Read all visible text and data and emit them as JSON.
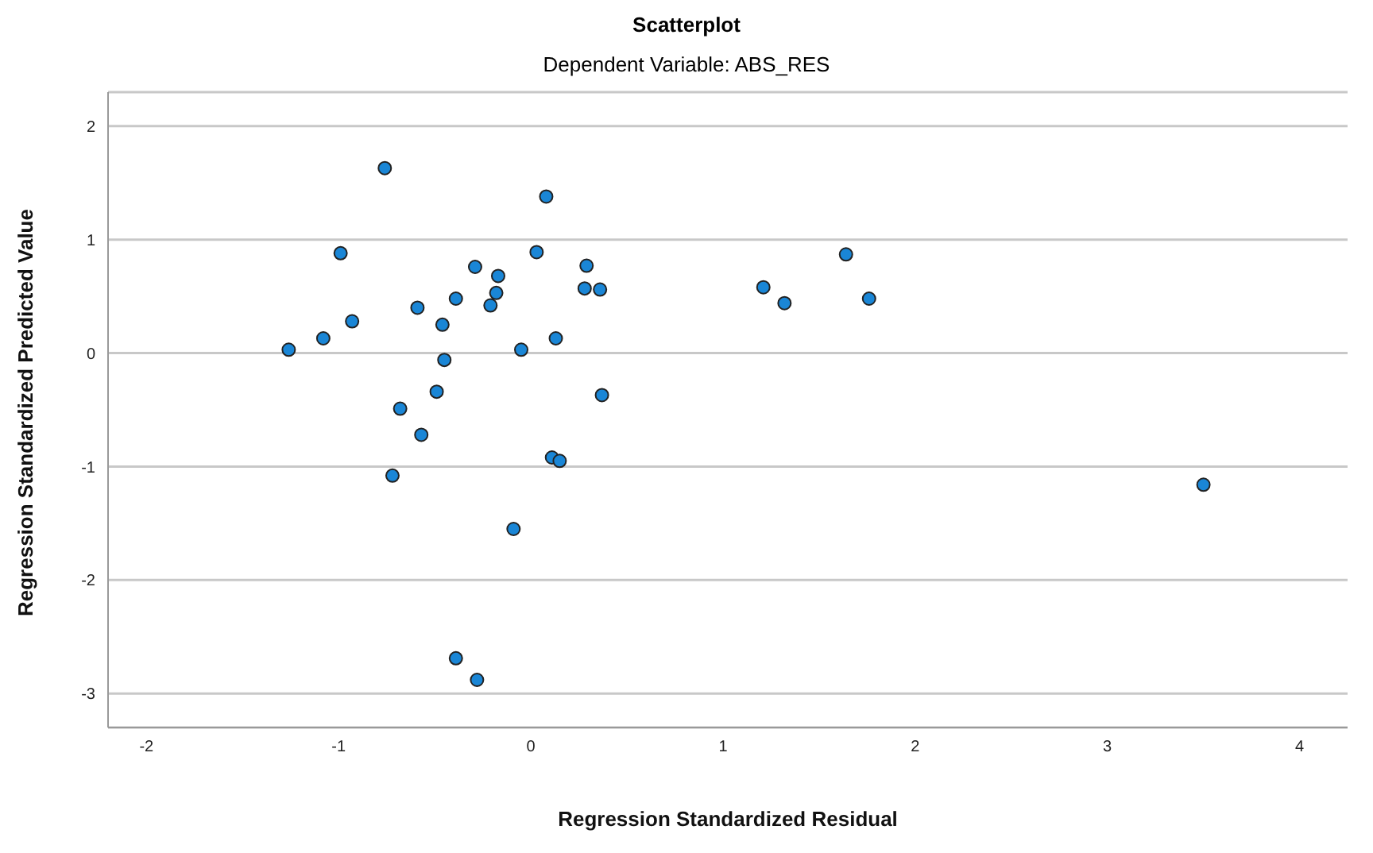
{
  "chart_data": {
    "type": "scatter",
    "title": "Scatterplot",
    "subtitle": "Dependent Variable: ABS_RES",
    "xlabel": "Regression Standardized Residual",
    "ylabel": "Regression Standardized Predicted Value",
    "x": [
      -0.76,
      0.08,
      -0.99,
      0.03,
      1.64,
      -0.29,
      0.29,
      -0.17,
      1.21,
      0.28,
      0.36,
      -0.18,
      -0.39,
      1.32,
      1.76,
      -0.21,
      -0.59,
      -0.46,
      -0.93,
      -1.08,
      0.13,
      -1.26,
      -0.05,
      -0.45,
      -0.49,
      -0.68,
      0.37,
      -0.57,
      0.11,
      0.15,
      -0.72,
      -0.09,
      -0.39,
      -0.28,
      3.5
    ],
    "values": [
      1.63,
      1.38,
      0.88,
      0.89,
      0.87,
      0.76,
      0.77,
      0.68,
      0.58,
      0.57,
      0.56,
      0.53,
      0.48,
      0.44,
      0.48,
      0.42,
      0.4,
      0.25,
      0.28,
      0.13,
      0.13,
      0.03,
      0.03,
      -0.06,
      -0.34,
      -0.49,
      -0.37,
      -0.72,
      -0.92,
      -0.95,
      -1.08,
      -1.55,
      -2.69,
      -2.88,
      -1.16
    ],
    "color": "#1a86d6",
    "marker": "circle",
    "grid": "y",
    "xlim": [
      -2.2,
      4.25
    ],
    "ylim": [
      -3.3,
      2.3
    ],
    "xticks": [
      -2,
      -1,
      0,
      1,
      2,
      3,
      4
    ],
    "yticks": [
      -3,
      -2,
      -1,
      0,
      1,
      2
    ]
  }
}
